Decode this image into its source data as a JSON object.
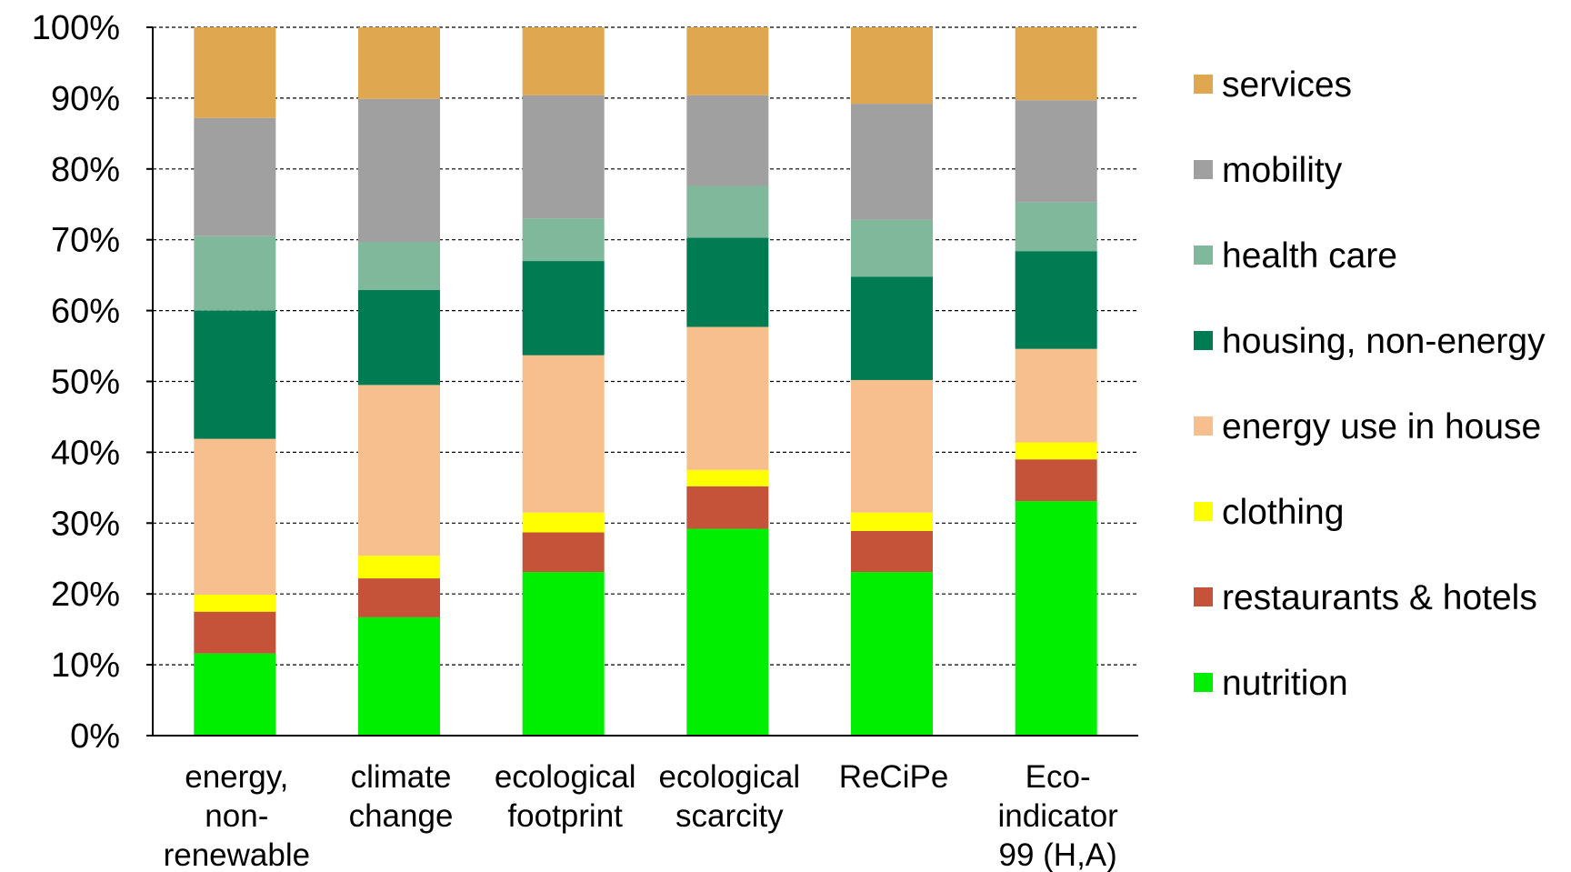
{
  "chart_data": {
    "type": "bar",
    "stacked": true,
    "percent": true,
    "categories": [
      [
        "energy,",
        "non-",
        "renewable"
      ],
      [
        "climate",
        "change"
      ],
      [
        "ecological",
        "footprint"
      ],
      [
        "ecological",
        "scarcity"
      ],
      [
        "ReCiPe"
      ],
      [
        "Eco-",
        "indicator",
        "99 (H,A)"
      ]
    ],
    "ylim": [
      0,
      100
    ],
    "y_ticks": [
      "0%",
      "10%",
      "20%",
      "30%",
      "40%",
      "50%",
      "60%",
      "70%",
      "80%",
      "90%",
      "100%"
    ],
    "grid": "horizontal, dashed",
    "legend_position": "right",
    "series": [
      {
        "name": "nutrition",
        "color": "#00ee00",
        "values": [
          11.6,
          16.7,
          23.1,
          29.2,
          23.1,
          33.1
        ]
      },
      {
        "name": "restaurants & hotels",
        "color": "#c5533a",
        "values": [
          5.9,
          5.5,
          5.6,
          6.0,
          5.8,
          5.9
        ]
      },
      {
        "name": "clothing",
        "color": "#ffff00",
        "values": [
          2.4,
          3.2,
          2.8,
          2.3,
          2.6,
          2.4
        ]
      },
      {
        "name": "energy use in house",
        "color": "#f7bf8e",
        "values": [
          22.0,
          24.1,
          22.2,
          20.2,
          18.7,
          13.2
        ]
      },
      {
        "name": "housing, non-energy",
        "color": "#007b52",
        "values": [
          18.1,
          13.4,
          13.3,
          12.6,
          14.6,
          13.8
        ]
      },
      {
        "name": "health care",
        "color": "#80b89c",
        "values": [
          10.5,
          6.8,
          6.0,
          7.3,
          8.0,
          6.9
        ]
      },
      {
        "name": "mobility",
        "color": "#a0a0a0",
        "values": [
          16.7,
          20.2,
          17.4,
          12.8,
          16.4,
          14.4
        ]
      },
      {
        "name": "services",
        "color": "#dfa74f",
        "values": [
          12.8,
          10.1,
          9.6,
          9.6,
          10.8,
          10.3
        ]
      }
    ]
  }
}
